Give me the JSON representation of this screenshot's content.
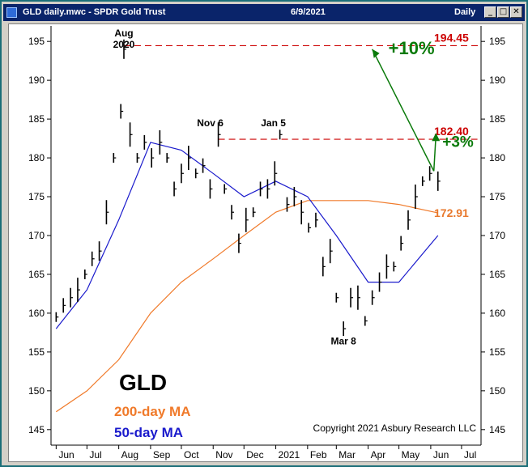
{
  "window": {
    "title": "GLD daily.mwc - SPDR Gold Trust",
    "date": "6/9/2021",
    "period": "Daily",
    "buttons": {
      "minimize": "_",
      "maximize": "□",
      "close": "✕"
    }
  },
  "chart_data": {
    "type": "line",
    "ticker": "GLD",
    "ylim": [
      143,
      197
    ],
    "y_ticks": [
      145,
      150,
      155,
      160,
      165,
      170,
      175,
      180,
      185,
      190,
      195
    ],
    "x_ticks": [
      "Jun",
      "Jul",
      "Aug",
      "Sep",
      "Oct",
      "Nov",
      "Dec",
      "2021",
      "Feb",
      "Mar",
      "Apr",
      "May",
      "Jun",
      "Jul"
    ],
    "series": [
      {
        "name": "GLD",
        "color": "#000000",
        "points": [
          [
            "2020-06-01",
            159.5
          ],
          [
            "2020-06-08",
            161.0
          ],
          [
            "2020-06-15",
            162.0
          ],
          [
            "2020-06-22",
            163.0
          ],
          [
            "2020-06-29",
            165.0
          ],
          [
            "2020-07-06",
            167.0
          ],
          [
            "2020-07-13",
            168.0
          ],
          [
            "2020-07-20",
            173.0
          ],
          [
            "2020-07-27",
            180.0
          ],
          [
            "2020-08-03",
            186.0
          ],
          [
            "2020-08-06",
            194.0
          ],
          [
            "2020-08-12",
            183.0
          ],
          [
            "2020-08-19",
            180.0
          ],
          [
            "2020-08-26",
            182.0
          ],
          [
            "2020-09-02",
            180.0
          ],
          [
            "2020-09-10",
            182.0
          ],
          [
            "2020-09-17",
            180.0
          ],
          [
            "2020-09-24",
            176.0
          ],
          [
            "2020-10-01",
            178.0
          ],
          [
            "2020-10-08",
            180.0
          ],
          [
            "2020-10-15",
            178.0
          ],
          [
            "2020-10-22",
            179.0
          ],
          [
            "2020-10-29",
            176.0
          ],
          [
            "2020-11-06",
            183.0
          ],
          [
            "2020-11-12",
            176.0
          ],
          [
            "2020-11-19",
            173.0
          ],
          [
            "2020-11-26",
            169.0
          ],
          [
            "2020-12-03",
            172.0
          ],
          [
            "2020-12-10",
            173.0
          ],
          [
            "2020-12-17",
            176.0
          ],
          [
            "2020-12-24",
            176.0
          ],
          [
            "2020-12-31",
            178.0
          ],
          [
            "2021-01-05",
            183.0
          ],
          [
            "2021-01-12",
            174.0
          ],
          [
            "2021-01-19",
            175.0
          ],
          [
            "2021-01-26",
            173.0
          ],
          [
            "2021-02-02",
            171.0
          ],
          [
            "2021-02-09",
            172.0
          ],
          [
            "2021-02-16",
            166.0
          ],
          [
            "2021-02-23",
            168.0
          ],
          [
            "2021-03-01",
            162.0
          ],
          [
            "2021-03-08",
            158.0
          ],
          [
            "2021-03-15",
            162.0
          ],
          [
            "2021-03-22",
            162.0
          ],
          [
            "2021-03-29",
            159.0
          ],
          [
            "2021-04-05",
            162.0
          ],
          [
            "2021-04-12",
            164.0
          ],
          [
            "2021-04-19",
            166.0
          ],
          [
            "2021-04-26",
            166.0
          ],
          [
            "2021-05-03",
            169.0
          ],
          [
            "2021-05-10",
            172.0
          ],
          [
            "2021-05-17",
            175.0
          ],
          [
            "2021-05-24",
            177.0
          ],
          [
            "2021-05-31",
            178.0
          ],
          [
            "2021-06-08",
            177.0
          ]
        ]
      },
      {
        "name": "200-day MA",
        "color": "#f07a2a",
        "points": [
          [
            "2020-06-01",
            147.3
          ],
          [
            "2020-07-01",
            150.0
          ],
          [
            "2020-08-01",
            154.0
          ],
          [
            "2020-09-01",
            160.0
          ],
          [
            "2020-10-01",
            164.0
          ],
          [
            "2020-11-01",
            167.0
          ],
          [
            "2020-12-01",
            170.0
          ],
          [
            "2021-01-01",
            173.0
          ],
          [
            "2021-02-01",
            174.5
          ],
          [
            "2021-03-01",
            174.5
          ],
          [
            "2021-04-01",
            174.5
          ],
          [
            "2021-05-01",
            174.0
          ],
          [
            "2021-06-08",
            172.91
          ]
        ]
      },
      {
        "name": "50-day MA",
        "color": "#1a1acc",
        "points": [
          [
            "2020-06-01",
            158.0
          ],
          [
            "2020-07-01",
            163.0
          ],
          [
            "2020-08-01",
            172.0
          ],
          [
            "2020-09-01",
            182.0
          ],
          [
            "2020-10-01",
            181.0
          ],
          [
            "2020-11-01",
            178.0
          ],
          [
            "2020-12-01",
            175.0
          ],
          [
            "2021-01-01",
            177.0
          ],
          [
            "2021-02-01",
            175.0
          ],
          [
            "2021-03-01",
            170.0
          ],
          [
            "2021-04-01",
            164.0
          ],
          [
            "2021-05-01",
            164.0
          ],
          [
            "2021-06-08",
            170.0
          ]
        ]
      }
    ],
    "levels": [
      {
        "label": "194.45",
        "value": 194.45,
        "color": "#cc0000"
      },
      {
        "label": "182.40",
        "value": 182.4,
        "color": "#cc0000"
      }
    ],
    "ma_value_label": {
      "label": "172.91",
      "value": 172.91,
      "color": "#e8782c"
    },
    "annotations": [
      {
        "text": "Aug",
        "date": "2020-08-06"
      },
      {
        "text": "2020",
        "date": "2020-08-06"
      },
      {
        "text": "Nov 6",
        "date": "2020-11-06"
      },
      {
        "text": "Jan 5",
        "date": "2021-01-05"
      },
      {
        "text": "Mar 8",
        "date": "2021-03-08"
      }
    ],
    "targets": [
      {
        "text": "+10%",
        "color": "#0a7a0a"
      },
      {
        "text": "+3%",
        "color": "#0a7a0a"
      }
    ],
    "legend": [
      {
        "text": "GLD",
        "color": "#000000"
      },
      {
        "text": "200-day MA",
        "color": "#f07a2a"
      },
      {
        "text": "50-day MA",
        "color": "#1a1acc"
      }
    ],
    "copyright": "Copyright 2021 Asbury Research LLC"
  }
}
